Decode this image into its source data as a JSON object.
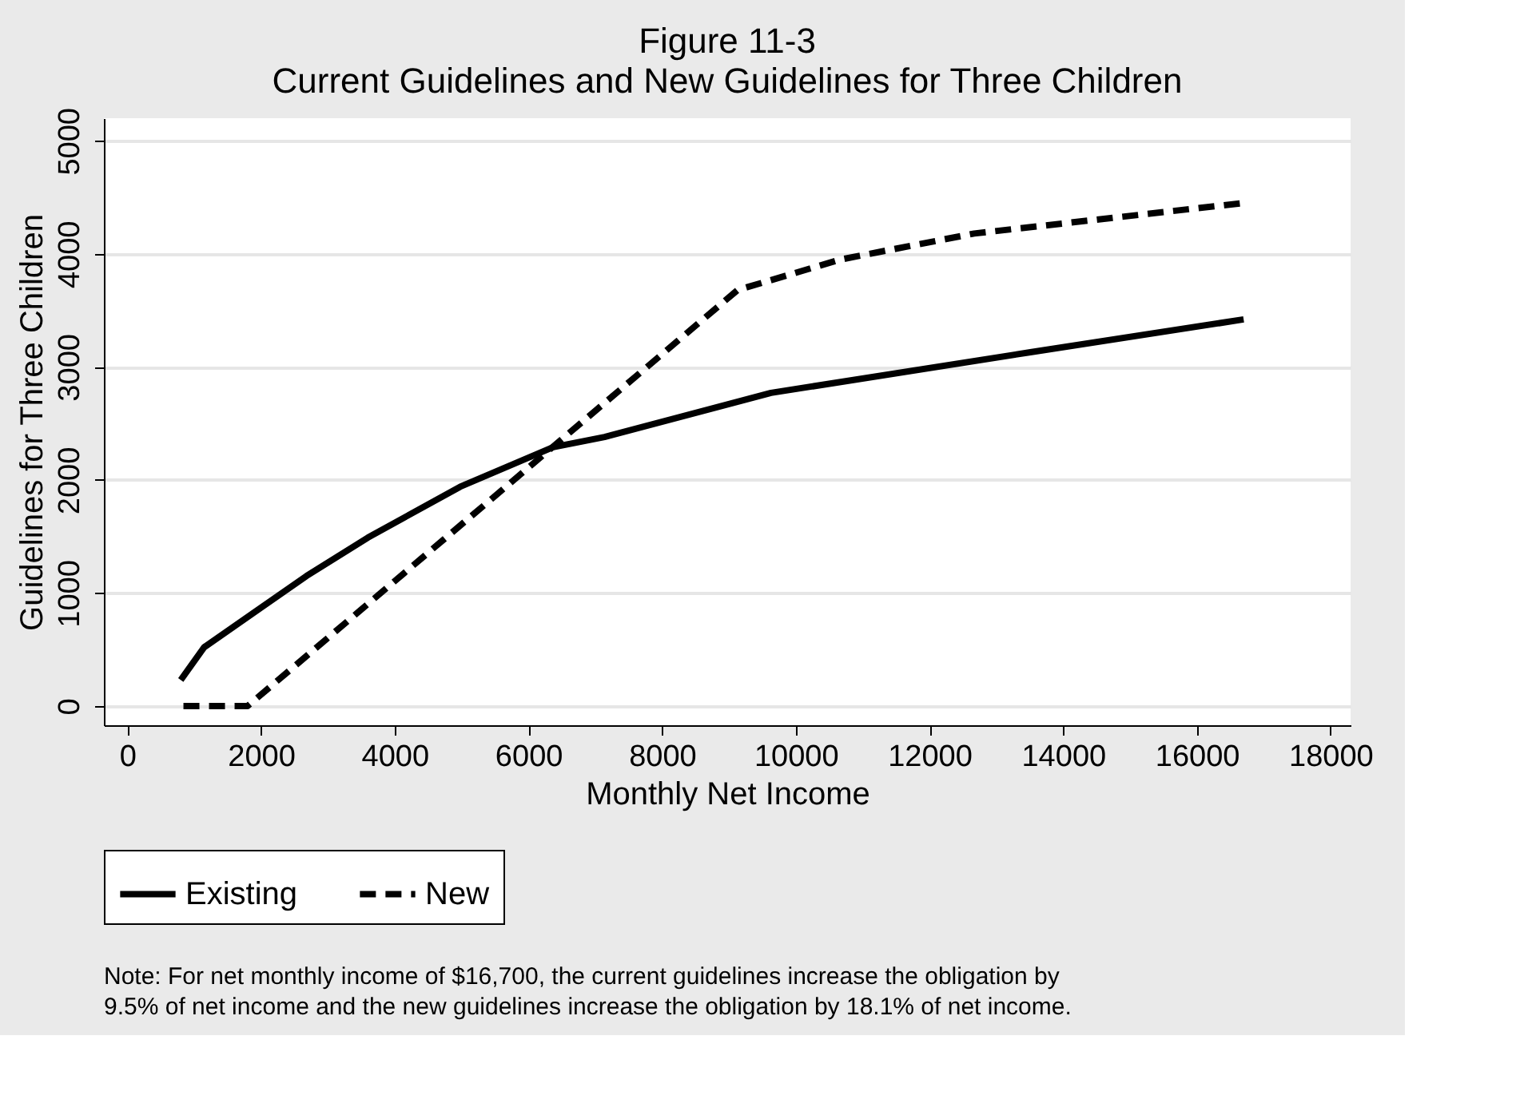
{
  "chart_data": {
    "type": "line",
    "title": "Figure 11-3",
    "subtitle": "Current Guidelines and New Guidelines for Three Children",
    "xlabel": "Monthly Net Income",
    "ylabel": "Guidelines for Three Children",
    "series": [
      {
        "name": "Existing",
        "color": "#000000",
        "line_style": "solid",
        "x": [
          800,
          1150,
          2680,
          3600,
          4980,
          6370,
          7140,
          9630,
          13510,
          16700
        ],
        "values": [
          230,
          520,
          1150,
          1490,
          1940,
          2290,
          2380,
          2770,
          3130,
          3420
        ]
      },
      {
        "name": "New",
        "color": "#000000",
        "line_style": "dashed",
        "x": [
          840,
          1800,
          9130,
          10670,
          12670,
          16700
        ],
        "values": [
          0,
          0,
          3680,
          3950,
          4180,
          4450
        ]
      }
    ],
    "xlim": [
      -350,
      18300
    ],
    "xticks": [
      0,
      2000,
      4000,
      6000,
      8000,
      10000,
      12000,
      14000,
      16000,
      18000
    ],
    "ylim": [
      -170,
      5200
    ],
    "yticks": [
      0,
      1000,
      2000,
      3000,
      4000,
      5000
    ],
    "grid": "y",
    "legend": "bottom",
    "annotations": [
      "Note: For net monthly income of $16,700, the current guidelines increase the obligation by 9.5% of net income and the new guidelines increase the obligation by 18.1% of net income."
    ]
  }
}
